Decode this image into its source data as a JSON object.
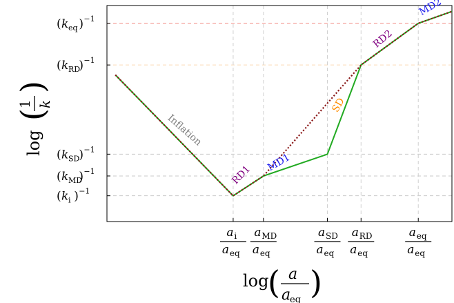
{
  "chart_data": {
    "type": "line",
    "title": "",
    "xlabel": {
      "main": "log",
      "num": "a",
      "den": "a",
      "den_sub": "eq"
    },
    "ylabel": {
      "main": "log",
      "num": "1",
      "den": "k"
    },
    "x_ticks": [
      {
        "id": "ai",
        "num": "a",
        "num_sub": "i",
        "den": "a",
        "den_sub": "eq",
        "x": 3.5
      },
      {
        "id": "amd",
        "num": "a",
        "num_sub": "MD",
        "den": "a",
        "den_sub": "eq",
        "x": 4.4
      },
      {
        "id": "asd",
        "num": "a",
        "num_sub": "SD",
        "den": "a",
        "den_sub": "eq",
        "x": 6.3
      },
      {
        "id": "ard",
        "num": "a",
        "num_sub": "RD",
        "den": "a",
        "den_sub": "eq",
        "x": 7.3
      },
      {
        "id": "aeq",
        "num": "a",
        "num_sub": "eq",
        "den": "a",
        "den_sub": "eq",
        "x": 9.0
      }
    ],
    "y_ticks": [
      {
        "id": "keq",
        "sym": "k",
        "sub": "eq",
        "y": 9.7,
        "grid_color": "#f28b82"
      },
      {
        "id": "krd",
        "sym": "k",
        "sub": "RD",
        "y": 7.6,
        "grid_color": "#fbd9b5"
      },
      {
        "id": "ksd",
        "sym": "k",
        "sub": "SD",
        "y": 3.1,
        "grid_color": "#c8c8c8"
      },
      {
        "id": "kmd",
        "sym": "k",
        "sub": "MD",
        "y": 2.0,
        "grid_color": "#c8c8c8"
      },
      {
        "id": "ki",
        "sym": "k",
        "sub": "i",
        "y": 1.0,
        "grid_color": "#c8c8c8"
      }
    ],
    "xlim": [
      -0.25,
      10.0
    ],
    "ylim": [
      -0.3,
      10.6
    ],
    "grid": true,
    "series": [
      {
        "color": "#22aa22",
        "style": "solid",
        "x": [
          0.0,
          3.5,
          4.4,
          6.3,
          7.3,
          9.0,
          10.0
        ],
        "y": [
          7.1,
          1.0,
          2.0,
          3.1,
          7.6,
          9.7,
          10.3
        ]
      },
      {
        "color": "#8b1a1a",
        "style": "dotted",
        "x": [
          0.0,
          3.5,
          4.4,
          7.3,
          9.0,
          10.0
        ],
        "y": [
          7.1,
          1.0,
          2.0,
          7.6,
          9.7,
          10.3
        ]
      }
    ],
    "annotations": [
      {
        "text": "Inflation",
        "color": "#7f7f7f",
        "x": 2.0,
        "y": 4.2,
        "angle": 41
      },
      {
        "text": "RD1",
        "color": "#800080",
        "x": 3.8,
        "y": 1.95,
        "angle": -46
      },
      {
        "text": "MD1",
        "color": "#1a1aee",
        "x": 4.9,
        "y": 2.55,
        "angle": -30
      },
      {
        "text": "SD",
        "color": "#ff8c00",
        "x": 6.7,
        "y": 5.5,
        "angle": -60
      },
      {
        "text": "RD2",
        "color": "#800080",
        "x": 8.0,
        "y": 8.8,
        "angle": -40
      },
      {
        "text": "MD2",
        "color": "#1a1aee",
        "x": 9.4,
        "y": 10.4,
        "angle": -30
      }
    ]
  }
}
